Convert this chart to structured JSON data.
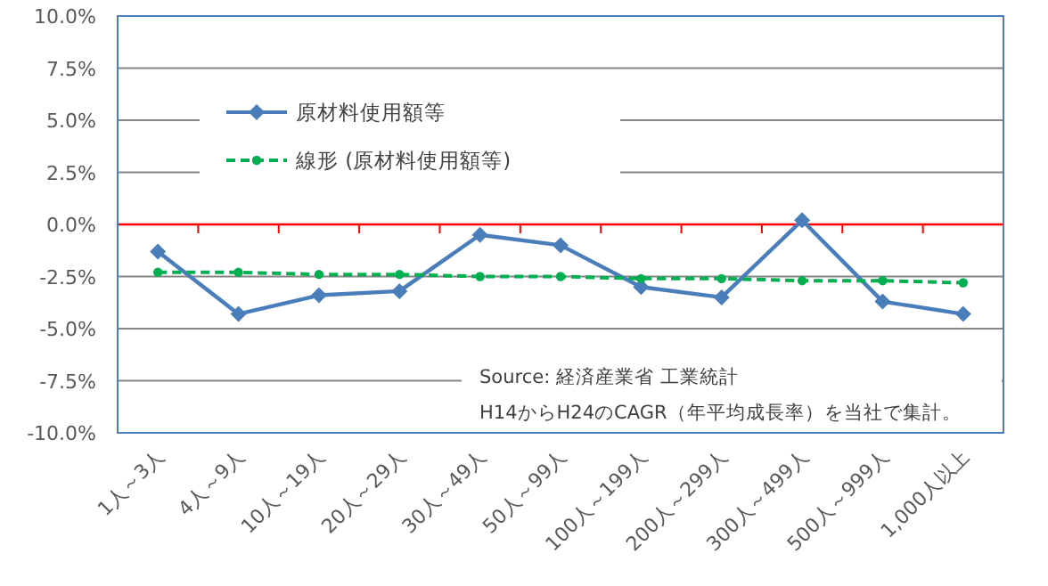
{
  "chart_data": {
    "type": "line",
    "categories": [
      "1人～3人",
      "4人～9人",
      "10人～19人",
      "20人～29人",
      "30人～49人",
      "50人～99人",
      "100人～199人",
      "200人～299人",
      "300人～499人",
      "500人～999人",
      "1,000人以上"
    ],
    "series": [
      {
        "name": "原材料使用額等",
        "color": "#4a7ebb",
        "marker": "diamond",
        "line_style": "solid",
        "values": [
          -1.3,
          -4.3,
          -3.4,
          -3.2,
          -0.5,
          -1.0,
          -3.0,
          -3.5,
          0.2,
          -3.7,
          -4.3
        ]
      },
      {
        "name": "線形 (原材料使用額等)",
        "color": "#00b050",
        "marker": "circle",
        "line_style": "dashed",
        "values": [
          -2.3,
          -2.3,
          -2.4,
          -2.4,
          -2.5,
          -2.5,
          -2.6,
          -2.6,
          -2.7,
          -2.7,
          -2.8
        ]
      }
    ],
    "ylim": [
      -10,
      10
    ],
    "yticks": [
      {
        "value": -10,
        "label": "-10.0%"
      },
      {
        "value": -7.5,
        "label": "-7.5%"
      },
      {
        "value": -5,
        "label": "-5.0%"
      },
      {
        "value": -2.5,
        "label": "-2.5%"
      },
      {
        "value": 0,
        "label": "0.0%"
      },
      {
        "value": 2.5,
        "label": "2.5%"
      },
      {
        "value": 5,
        "label": "5.0%"
      },
      {
        "value": 7.5,
        "label": "7.5%"
      },
      {
        "value": 10,
        "label": "10.0%"
      }
    ],
    "ref_lines": [
      {
        "axis": "y",
        "value": 0,
        "color": "#ff0000"
      }
    ],
    "grid": "y",
    "legend": "top left",
    "annotations": [
      "Source: 経済産業省 工業統計",
      "H14からH24のCAGR（年平均成長率）を当社で集計。"
    ]
  }
}
